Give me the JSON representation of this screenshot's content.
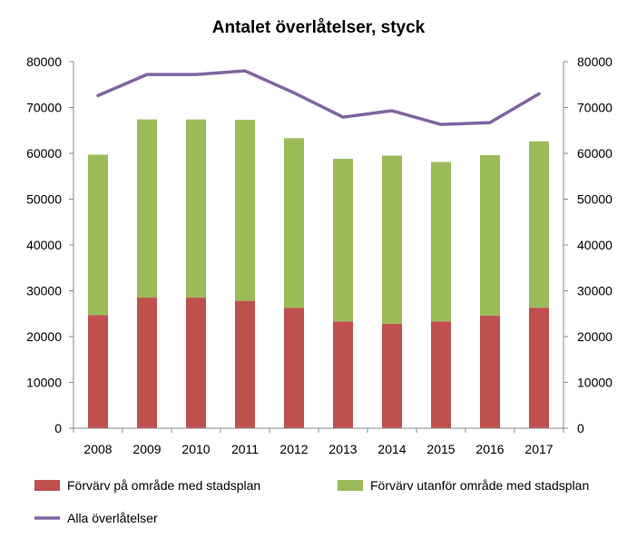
{
  "chart_data": {
    "type": "bar",
    "stacked": true,
    "title": "Antalet överlåtelser, styck",
    "categories": [
      "2008",
      "2009",
      "2010",
      "2011",
      "2012",
      "2013",
      "2014",
      "2015",
      "2016",
      "2017"
    ],
    "series": [
      {
        "name": "Förvärv på område med stadsplan",
        "kind": "bar",
        "color": "#c0504d",
        "values": [
          24700,
          28500,
          28500,
          27800,
          26300,
          23300,
          22800,
          23300,
          24600,
          26300
        ]
      },
      {
        "name": "Förvärv utanför område med stadsplan",
        "kind": "bar",
        "color": "#9bbb59",
        "values": [
          35000,
          38900,
          38900,
          39500,
          37000,
          35500,
          36700,
          34800,
          35000,
          36300
        ]
      },
      {
        "name": "Alla överlåtelser",
        "kind": "line",
        "color": "#8064a2",
        "values": [
          72600,
          77200,
          77200,
          78000,
          73200,
          67900,
          69300,
          66300,
          66700,
          73000
        ]
      }
    ],
    "ylim": [
      0,
      80000
    ],
    "y_ticks": [
      "0",
      "10000",
      "20000",
      "30000",
      "40000",
      "50000",
      "60000",
      "70000",
      "80000"
    ],
    "y2_ticks": [
      "0",
      "10000",
      "20000",
      "30000",
      "40000",
      "50000",
      "60000",
      "70000",
      "80000"
    ],
    "grid": false,
    "legend_position": "bottom"
  }
}
